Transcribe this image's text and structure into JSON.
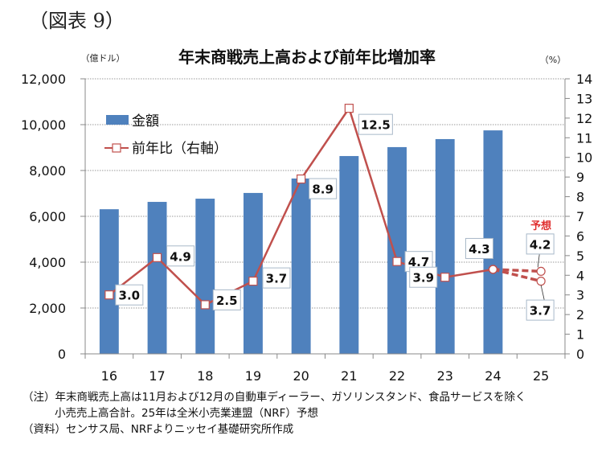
{
  "figure_label": "（図表 9）",
  "notes": [
    "（注）年末商戦売上高は11月および12月の自動車ディーラー、ガソリンスタンド、食品サービスを除く",
    "小売売上高合計。25年は全米小売業連盟（NRF）予想",
    "（資料）センサス局、NRFよりニッセイ基礎研究所作成"
  ],
  "chart_data": {
    "type": "bar",
    "title": "年末商戦売上高および前年比増加率",
    "xlabel": "",
    "ylabel": "（億ドル）",
    "y2label": "（%）",
    "categories": [
      "16",
      "17",
      "18",
      "19",
      "20",
      "21",
      "22",
      "23",
      "24",
      "25"
    ],
    "ylim": [
      0,
      12000
    ],
    "yticks": [
      0,
      2000,
      4000,
      6000,
      8000,
      10000,
      12000
    ],
    "ytick_labels": [
      "0",
      "2,000",
      "4,000",
      "6,000",
      "8,000",
      "10,000",
      "12,000"
    ],
    "y2lim": [
      0,
      14
    ],
    "y2ticks": [
      0,
      1,
      2,
      3,
      4,
      5,
      6,
      7,
      8,
      9,
      10,
      11,
      12,
      13,
      14
    ],
    "grid": true,
    "legend_placement": "top-left",
    "series": [
      {
        "name": "金額",
        "type": "bar",
        "axis": "left",
        "color": "#4F81BD",
        "values": [
          6310,
          6630,
          6770,
          7020,
          7650,
          8630,
          9020,
          9370,
          9750,
          null
        ]
      },
      {
        "name": "前年比（右軸）",
        "type": "line",
        "axis": "right",
        "color": "#C0504D",
        "values": [
          3.0,
          4.9,
          2.5,
          3.7,
          8.9,
          12.5,
          4.7,
          3.9,
          4.3,
          null
        ],
        "labels": [
          "3.0",
          "4.9",
          "2.5",
          "3.7",
          "8.9",
          "12.5",
          "4.7",
          "3.9",
          "4.3",
          ""
        ]
      }
    ],
    "forecast": {
      "label": "予想",
      "label_color": "#E03030",
      "category": "25",
      "from_category": "24",
      "from_value": 4.3,
      "values": [
        4.2,
        3.7
      ],
      "labels": [
        "4.2",
        "3.7"
      ],
      "style": "dashed"
    }
  }
}
